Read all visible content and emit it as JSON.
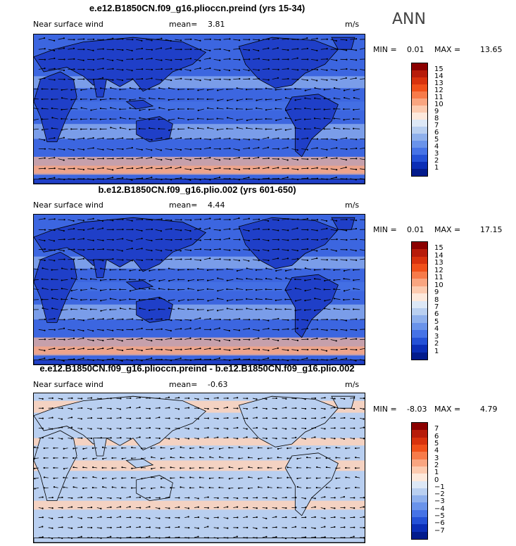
{
  "season": "ANN",
  "panels": [
    {
      "title": "e.e12.B1850CN.f09_g16.plioccn.preind (yrs 15-34)",
      "variable": "Near surface wind",
      "mean_label": "mean=",
      "mean": "3.81",
      "units": "m/s",
      "min_label": "MIN =",
      "min": "0.01",
      "max_label": "MAX =",
      "max": "13.65",
      "colorbar": {
        "labels": [
          "15",
          "14",
          "13",
          "12",
          "11",
          "10",
          "9",
          "8",
          "7",
          "6",
          "5",
          "4",
          "3",
          "2",
          "1"
        ],
        "colors": [
          "#8b0000",
          "#b71c0a",
          "#d8320d",
          "#f0501a",
          "#f77b4a",
          "#f9a580",
          "#fccbb0",
          "#fde9dc",
          "#dde8f6",
          "#b9cff0",
          "#8fb0ec",
          "#6a93ea",
          "#4673e6",
          "#2451d6",
          "#0b2eb6",
          "#031b8c"
        ]
      }
    },
    {
      "title": "b.e12.B1850CN.f09_g16.plio.002 (yrs 601-650)",
      "variable": "Near surface wind",
      "mean_label": "mean=",
      "mean": "4.44",
      "units": "m/s",
      "min_label": "MIN =",
      "min": "0.01",
      "max_label": "MAX =",
      "max": "17.15",
      "colorbar": {
        "labels": [
          "15",
          "14",
          "13",
          "12",
          "11",
          "10",
          "9",
          "8",
          "7",
          "6",
          "5",
          "4",
          "3",
          "2",
          "1"
        ],
        "colors": [
          "#8b0000",
          "#b71c0a",
          "#d8320d",
          "#f0501a",
          "#f77b4a",
          "#f9a580",
          "#fccbb0",
          "#fde9dc",
          "#dde8f6",
          "#b9cff0",
          "#8fb0ec",
          "#6a93ea",
          "#4673e6",
          "#2451d6",
          "#0b2eb6",
          "#031b8c"
        ]
      }
    },
    {
      "title": "e.e12.B1850CN.f09_g16.plioccn.preind - b.e12.B1850CN.f09_g16.plio.002",
      "variable": "Near surface wind",
      "mean_label": "mean=",
      "mean": "-0.63",
      "units": "m/s",
      "min_label": "MIN =",
      "min": "-8.03",
      "max_label": "MAX =",
      "max": "4.79",
      "colorbar": {
        "labels": [
          "7",
          "6",
          "5",
          "4",
          "3",
          "2",
          "1",
          "0",
          "−1",
          "−2",
          "−3",
          "−4",
          "−5",
          "−6",
          "−7"
        ],
        "colors": [
          "#8b0000",
          "#b71c0a",
          "#d8320d",
          "#f0501a",
          "#f77b4a",
          "#f9a580",
          "#fccbb0",
          "#fde9dc",
          "#dde8f6",
          "#b9cff0",
          "#8fb0ec",
          "#6a93ea",
          "#4673e6",
          "#2451d6",
          "#0b2eb6",
          "#031b8c"
        ]
      }
    }
  ],
  "colors": {
    "ocean_dark": "#1f3fc8",
    "ocean_mid": "#3c66e0",
    "jet_warm": "#f4b49a",
    "diff_bg": "#b9cff0",
    "diff_pos": "#fbd2bd",
    "coast": "#000000"
  },
  "icons": {
    "wind_vector": "arrow-icon"
  }
}
